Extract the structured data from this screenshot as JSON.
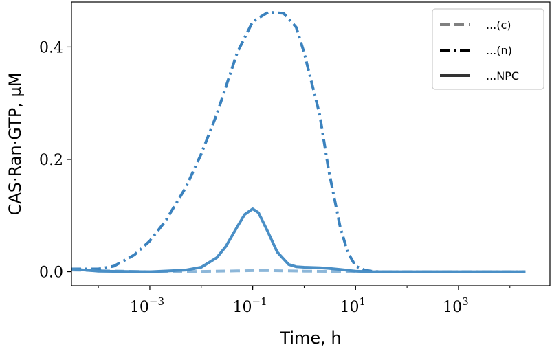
{
  "chart_data": {
    "type": "line",
    "xlabel": "Time, h",
    "ylabel": "CAS·Ran·GTP, μM",
    "x_scale": "log",
    "xlim": [
      3e-05,
      60000
    ],
    "ylim": [
      -0.025,
      0.48
    ],
    "xticks": [
      {
        "value": 0.001,
        "base": "10",
        "exp": "−3"
      },
      {
        "value": 0.1,
        "base": "10",
        "exp": "−1"
      },
      {
        "value": 10,
        "base": "10",
        "exp": "1"
      },
      {
        "value": 1000,
        "base": "10",
        "exp": "3"
      }
    ],
    "yticks": [
      {
        "value": 0.0,
        "label": "0.0"
      },
      {
        "value": 0.2,
        "label": "0.2"
      },
      {
        "value": 0.4,
        "label": "0.4"
      }
    ],
    "legend_position": "top-right",
    "series": [
      {
        "name": "...(c)",
        "style": "dashed",
        "color": "#8db7d9",
        "legend_color": "#808080",
        "x": [
          3e-05,
          0.001,
          0.01,
          0.05,
          0.1,
          0.2,
          0.5,
          1,
          3,
          10,
          30,
          100,
          1000,
          20000
        ],
        "y": [
          0.003,
          0.0,
          0.0005,
          0.0015,
          0.002,
          0.002,
          0.0015,
          0.001,
          0.0007,
          0.0003,
          0.0,
          0.0,
          0.0,
          0.0
        ]
      },
      {
        "name": "...(n)",
        "style": "dashdot",
        "color": "#3b82be",
        "legend_color": "#000000",
        "x": [
          3e-05,
          0.0001,
          0.0002,
          0.0005,
          0.001,
          0.002,
          0.005,
          0.01,
          0.02,
          0.05,
          0.1,
          0.2,
          0.4,
          0.7,
          1,
          2,
          3,
          5,
          7,
          10,
          15,
          20,
          30,
          100,
          1000,
          20000
        ],
        "y": [
          0.005,
          0.005,
          0.01,
          0.03,
          0.055,
          0.09,
          0.15,
          0.21,
          0.28,
          0.39,
          0.445,
          0.462,
          0.46,
          0.435,
          0.39,
          0.28,
          0.18,
          0.08,
          0.035,
          0.01,
          0.003,
          0.001,
          0.0,
          0.0,
          0.0,
          0.0
        ]
      },
      {
        "name": "...NPC",
        "style": "solid",
        "color": "#4a8fc6",
        "legend_color": "#333333",
        "x": [
          3e-05,
          0.0001,
          0.001,
          0.005,
          0.01,
          0.02,
          0.03,
          0.05,
          0.07,
          0.1,
          0.13,
          0.2,
          0.3,
          0.5,
          0.7,
          1,
          2,
          3,
          5,
          10,
          20,
          100,
          1000,
          20000
        ],
        "y": [
          0.005,
          0.001,
          0.0,
          0.003,
          0.008,
          0.025,
          0.045,
          0.08,
          0.102,
          0.112,
          0.105,
          0.07,
          0.035,
          0.013,
          0.009,
          0.008,
          0.007,
          0.006,
          0.004,
          0.001,
          0.0,
          0.0,
          0.0,
          0.0
        ]
      }
    ]
  }
}
